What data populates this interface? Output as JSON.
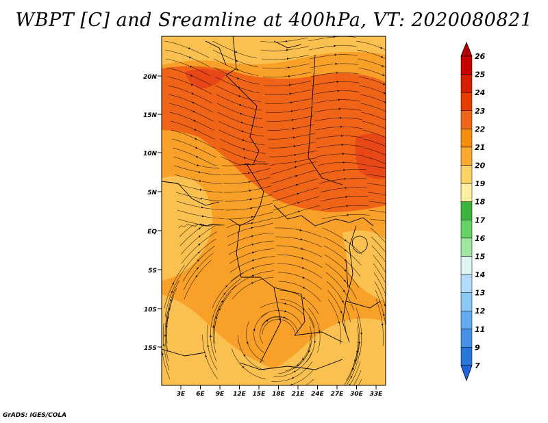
{
  "title": "WBPT [C] and Sreamline at 400hPa, VT: 2020080821",
  "credit": "GrADS: IGES/COLA",
  "map": {
    "lat_labels": [
      "20N",
      "15N",
      "10N",
      "5N",
      "EQ",
      "5S",
      "10S",
      "15S"
    ],
    "lon_labels": [
      "3E",
      "6E",
      "9E",
      "12E",
      "15E",
      "18E",
      "21E",
      "24E",
      "27E",
      "30E",
      "33E"
    ],
    "fill_colors": {
      "light_orange": "#fac050",
      "orange": "#f8a028",
      "dark_orange": "#f06418",
      "red_orange": "#e84818"
    }
  },
  "colorbar": {
    "labels": [
      "26",
      "25",
      "24",
      "23",
      "22",
      "21",
      "20",
      "19",
      "18",
      "17",
      "16",
      "15",
      "14",
      "13",
      "12",
      "11",
      "9",
      "7"
    ],
    "colors": [
      "#c80000",
      "#d81e00",
      "#e83c00",
      "#f06418",
      "#f58c0a",
      "#faa832",
      "#fcd264",
      "#fcf0a0",
      "#3cb43c",
      "#64d264",
      "#a0e6a0",
      "#dcf5f0",
      "#b4dcfa",
      "#8cc8f5",
      "#64aaf0",
      "#4690e6",
      "#2878dc"
    ]
  }
}
